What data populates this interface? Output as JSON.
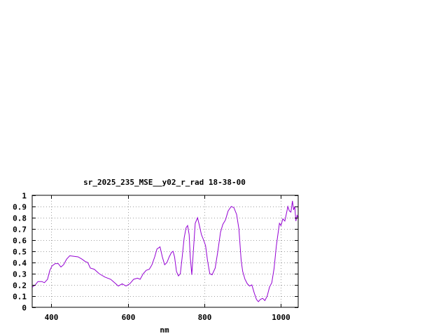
{
  "chart_data": {
    "type": "line",
    "title": "sr_2025_235_MSE__y02_r_rad 18-38-00",
    "xlabel": "nm",
    "ylabel": "",
    "xlim": [
      350,
      1045
    ],
    "ylim": [
      0,
      1
    ],
    "xticks": [
      400,
      600,
      800,
      1000
    ],
    "xtick_labels": [
      "400",
      "600",
      "800",
      "1000"
    ],
    "yticks": [
      0,
      0.1,
      0.2,
      0.3,
      0.4,
      0.5,
      0.6,
      0.7,
      0.8,
      0.9,
      1
    ],
    "ytick_labels": [
      "0",
      "0.1",
      "0.2",
      "0.3",
      "0.4",
      "0.5",
      "0.6",
      "0.7",
      "0.8",
      "0.9",
      "1"
    ],
    "grid": true,
    "line_color": "#9400d3",
    "series": [
      {
        "values": [
          [
            350,
            0.18
          ],
          [
            358,
            0.2
          ],
          [
            365,
            0.23
          ],
          [
            375,
            0.23
          ],
          [
            382,
            0.22
          ],
          [
            390,
            0.25
          ],
          [
            396,
            0.33
          ],
          [
            402,
            0.37
          ],
          [
            410,
            0.39
          ],
          [
            418,
            0.39
          ],
          [
            425,
            0.36
          ],
          [
            432,
            0.38
          ],
          [
            440,
            0.43
          ],
          [
            448,
            0.46
          ],
          [
            460,
            0.455
          ],
          [
            470,
            0.45
          ],
          [
            480,
            0.43
          ],
          [
            488,
            0.41
          ],
          [
            495,
            0.4
          ],
          [
            502,
            0.35
          ],
          [
            512,
            0.34
          ],
          [
            525,
            0.3
          ],
          [
            540,
            0.27
          ],
          [
            555,
            0.25
          ],
          [
            565,
            0.22
          ],
          [
            575,
            0.19
          ],
          [
            585,
            0.21
          ],
          [
            595,
            0.19
          ],
          [
            605,
            0.21
          ],
          [
            615,
            0.25
          ],
          [
            625,
            0.26
          ],
          [
            632,
            0.25
          ],
          [
            640,
            0.3
          ],
          [
            648,
            0.33
          ],
          [
            656,
            0.34
          ],
          [
            663,
            0.38
          ],
          [
            670,
            0.45
          ],
          [
            676,
            0.52
          ],
          [
            684,
            0.54
          ],
          [
            690,
            0.45
          ],
          [
            696,
            0.38
          ],
          [
            702,
            0.4
          ],
          [
            708,
            0.45
          ],
          [
            714,
            0.49
          ],
          [
            718,
            0.5
          ],
          [
            722,
            0.45
          ],
          [
            727,
            0.32
          ],
          [
            732,
            0.28
          ],
          [
            737,
            0.3
          ],
          [
            742,
            0.45
          ],
          [
            747,
            0.62
          ],
          [
            752,
            0.71
          ],
          [
            756,
            0.73
          ],
          [
            760,
            0.65
          ],
          [
            763,
            0.45
          ],
          [
            767,
            0.29
          ],
          [
            771,
            0.5
          ],
          [
            776,
            0.75
          ],
          [
            782,
            0.8
          ],
          [
            787,
            0.73
          ],
          [
            792,
            0.65
          ],
          [
            798,
            0.6
          ],
          [
            803,
            0.55
          ],
          [
            808,
            0.42
          ],
          [
            814,
            0.3
          ],
          [
            820,
            0.29
          ],
          [
            828,
            0.35
          ],
          [
            835,
            0.5
          ],
          [
            842,
            0.67
          ],
          [
            848,
            0.74
          ],
          [
            855,
            0.78
          ],
          [
            862,
            0.86
          ],
          [
            870,
            0.9
          ],
          [
            877,
            0.89
          ],
          [
            884,
            0.83
          ],
          [
            890,
            0.7
          ],
          [
            896,
            0.42
          ],
          [
            900,
            0.32
          ],
          [
            906,
            0.25
          ],
          [
            912,
            0.21
          ],
          [
            918,
            0.19
          ],
          [
            924,
            0.2
          ],
          [
            930,
            0.13
          ],
          [
            936,
            0.07
          ],
          [
            941,
            0.05
          ],
          [
            946,
            0.07
          ],
          [
            952,
            0.08
          ],
          [
            958,
            0.06
          ],
          [
            964,
            0.1
          ],
          [
            970,
            0.18
          ],
          [
            976,
            0.22
          ],
          [
            982,
            0.35
          ],
          [
            988,
            0.55
          ],
          [
            992,
            0.65
          ],
          [
            996,
            0.75
          ],
          [
            1000,
            0.73
          ],
          [
            1005,
            0.79
          ],
          [
            1010,
            0.77
          ],
          [
            1015,
            0.85
          ],
          [
            1018,
            0.9
          ],
          [
            1022,
            0.86
          ],
          [
            1026,
            0.85
          ],
          [
            1030,
            0.95
          ],
          [
            1033,
            0.87
          ],
          [
            1036,
            0.9
          ],
          [
            1039,
            0.77
          ],
          [
            1042,
            0.82
          ],
          [
            1045,
            0.8
          ]
        ]
      }
    ]
  }
}
